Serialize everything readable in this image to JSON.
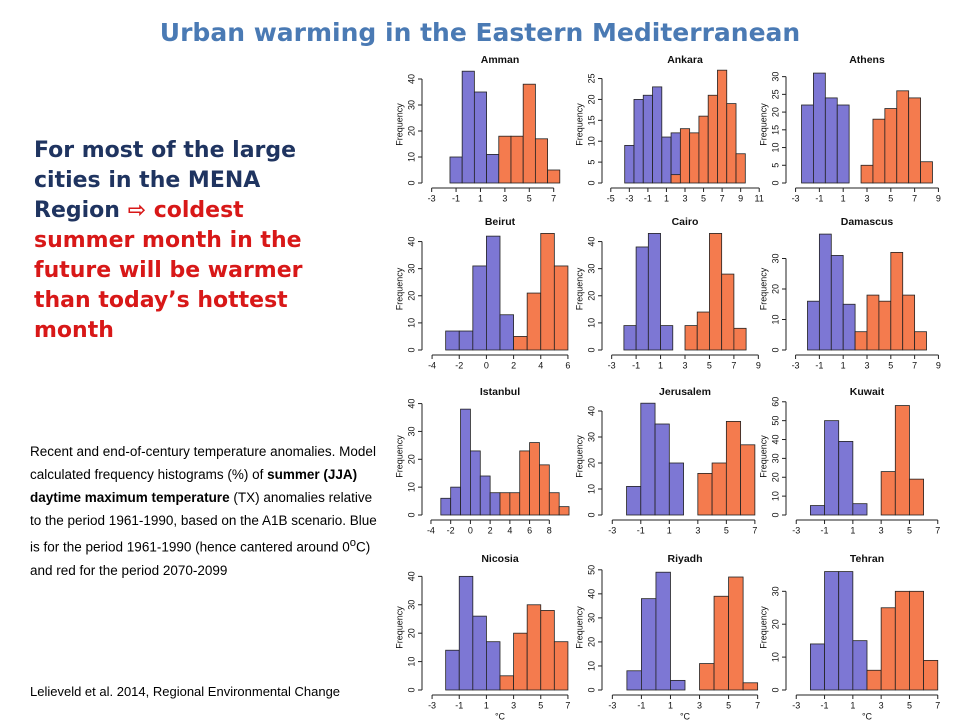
{
  "title": "Urban warming in the Eastern Mediterranean",
  "headline": {
    "lead": "For most of the large cities in the MENA Region",
    "arrow": "⇨",
    "emphasis": "coldest summer month in the future will be warmer than today’s hottest month"
  },
  "caption": [
    "Recent and end-of-century temperature anomalies. Model calculated frequency histograms (%) of ",
    "summer (JJA) daytime maximum temperature",
    " (TX) anomalies relative to the period 1961-1990, based on the A1B scenario. Blue is for the period 1961-1990 (hence cantered around 0",
    "o",
    "C) and red for the period 2070-2099"
  ],
  "citation": "Lelieveld et al. 2014, Regional Environmental Change",
  "chart_data": [
    {
      "type": "histogram",
      "title": "Amman",
      "ylabel": "Frequency",
      "xlim": [
        -3.3,
        8.5
      ],
      "xticks": [
        -3,
        -1,
        1,
        3,
        5,
        7
      ],
      "ylim": [
        0,
        45
      ],
      "yticks": [
        0,
        10,
        20,
        30,
        40
      ],
      "series": [
        {
          "color": "#7d77d4",
          "bins": [
            -1.5,
            -0.5,
            0.5,
            1.5,
            2.5
          ],
          "counts": [
            10,
            43,
            35,
            11
          ]
        },
        {
          "color": "#f47b4e",
          "bins": [
            2.5,
            3.5,
            4.5,
            5.5,
            6.5,
            7.5
          ],
          "counts": [
            18,
            18,
            38,
            17,
            5
          ]
        }
      ]
    },
    {
      "type": "histogram",
      "title": "Ankara",
      "ylabel": "Frequency",
      "xlim": [
        -5.3,
        11.3
      ],
      "xticks": [
        -5,
        -3,
        -1,
        1,
        3,
        5,
        7,
        9,
        11
      ],
      "ylim": [
        0,
        28
      ],
      "yticks": [
        0,
        5,
        10,
        15,
        20,
        25
      ],
      "series": [
        {
          "color": "#7d77d4",
          "bins": [
            -3.5,
            -2.5,
            -1.5,
            -0.5,
            0.5,
            1.5,
            2.5
          ],
          "counts": [
            9,
            20,
            21,
            23,
            11,
            12
          ]
        },
        {
          "color": "#f47b4e",
          "bins": [
            1.5,
            2.5,
            3.5,
            4.5,
            5.5,
            6.5,
            7.5,
            8.5,
            9.5
          ],
          "counts": [
            2,
            13,
            12,
            16,
            21,
            27,
            19,
            7
          ]
        }
      ]
    },
    {
      "type": "histogram",
      "title": "Athens",
      "ylabel": "Frequency",
      "xlim": [
        -3.3,
        9.3
      ],
      "xticks": [
        -3,
        -1,
        1,
        3,
        5,
        7,
        9
      ],
      "ylim": [
        0,
        33
      ],
      "yticks": [
        0,
        5,
        10,
        15,
        20,
        25,
        30
      ],
      "series": [
        {
          "color": "#7d77d4",
          "bins": [
            -2.5,
            -1.5,
            -0.5,
            0.5,
            1.5
          ],
          "counts": [
            22,
            31,
            24,
            22
          ]
        },
        {
          "color": "#f47b4e",
          "bins": [
            2.5,
            3.5,
            4.5,
            5.5,
            6.5,
            7.5,
            8.5
          ],
          "counts": [
            5,
            18,
            21,
            26,
            24,
            6
          ]
        }
      ]
    },
    {
      "type": "histogram",
      "title": "Beirut",
      "ylabel": "Frequency",
      "xlim": [
        -4.3,
        6.3
      ],
      "xticks": [
        -4,
        -2,
        0,
        2,
        4,
        6
      ],
      "ylim": [
        0,
        45
      ],
      "yticks": [
        0,
        10,
        20,
        30,
        40
      ],
      "series": [
        {
          "color": "#7d77d4",
          "bins": [
            -3,
            -2,
            -1,
            0,
            1,
            2
          ],
          "counts": [
            7,
            7,
            31,
            42,
            13
          ]
        },
        {
          "color": "#f47b4e",
          "bins": [
            2,
            3,
            4,
            5,
            6
          ],
          "counts": [
            5,
            21,
            43,
            31
          ]
        }
      ]
    },
    {
      "type": "histogram",
      "title": "Cairo",
      "ylabel": "Frequency",
      "xlim": [
        -3.3,
        9.3
      ],
      "xticks": [
        -3,
        -1,
        1,
        3,
        5,
        7,
        9
      ],
      "ylim": [
        0,
        45
      ],
      "yticks": [
        0,
        10,
        20,
        30,
        40
      ],
      "series": [
        {
          "color": "#7d77d4",
          "bins": [
            -2,
            -1,
            0,
            1,
            2
          ],
          "counts": [
            9,
            38,
            43,
            9
          ]
        },
        {
          "color": "#f47b4e",
          "bins": [
            3,
            4,
            5,
            6,
            7,
            8
          ],
          "counts": [
            9,
            14,
            43,
            28,
            8
          ]
        }
      ]
    },
    {
      "type": "histogram",
      "title": "Damascus",
      "ylabel": "Frequency",
      "xlim": [
        -3.3,
        9.3
      ],
      "xticks": [
        -3,
        -1,
        1,
        3,
        5,
        7,
        9
      ],
      "ylim": [
        0,
        40
      ],
      "yticks": [
        0,
        10,
        20,
        30
      ],
      "series": [
        {
          "color": "#7d77d4",
          "bins": [
            -2,
            -1,
            0,
            1,
            2
          ],
          "counts": [
            16,
            38,
            31,
            15
          ]
        },
        {
          "color": "#f47b4e",
          "bins": [
            2,
            3,
            4,
            5,
            6,
            7,
            8
          ],
          "counts": [
            6,
            18,
            16,
            32,
            18,
            6
          ]
        }
      ]
    },
    {
      "type": "histogram",
      "title": "Istanbul",
      "ylabel": "Frequency",
      "xlim": [
        -4.3,
        10.3
      ],
      "xticks": [
        -4,
        -2,
        0,
        2,
        4,
        6,
        8
      ],
      "ylim": [
        0,
        42
      ],
      "yticks": [
        0,
        10,
        20,
        30,
        40
      ],
      "series": [
        {
          "color": "#7d77d4",
          "bins": [
            -3,
            -2,
            -1,
            0,
            1,
            2,
            3
          ],
          "counts": [
            6,
            10,
            38,
            23,
            14,
            8
          ]
        },
        {
          "color": "#f47b4e",
          "bins": [
            3,
            4,
            5,
            6,
            7,
            8,
            9,
            10
          ],
          "counts": [
            8,
            8,
            23,
            26,
            18,
            8,
            3
          ]
        }
      ]
    },
    {
      "type": "histogram",
      "title": "Jerusalem",
      "ylabel": "Frequency",
      "xlim": [
        -3.3,
        7.5
      ],
      "xticks": [
        -3,
        -1,
        1,
        3,
        5,
        7
      ],
      "ylim": [
        0,
        45
      ],
      "yticks": [
        0,
        10,
        20,
        30,
        40
      ],
      "series": [
        {
          "color": "#7d77d4",
          "bins": [
            -2,
            -1,
            0,
            1,
            2
          ],
          "counts": [
            11,
            43,
            35,
            20
          ]
        },
        {
          "color": "#f47b4e",
          "bins": [
            3,
            4,
            5,
            6,
            7
          ],
          "counts": [
            16,
            20,
            36,
            27
          ]
        }
      ]
    },
    {
      "type": "histogram",
      "title": "Kuwait",
      "ylabel": "Frequency",
      "xlim": [
        -3.3,
        7.3
      ],
      "xticks": [
        -3,
        -1,
        1,
        3,
        5,
        7
      ],
      "ylim": [
        0,
        62
      ],
      "yticks": [
        0,
        10,
        20,
        30,
        40,
        50,
        60
      ],
      "series": [
        {
          "color": "#7d77d4",
          "bins": [
            -2,
            -1,
            0,
            1,
            2
          ],
          "counts": [
            5,
            50,
            39,
            6
          ]
        },
        {
          "color": "#f47b4e",
          "bins": [
            3,
            4,
            5,
            6
          ],
          "counts": [
            23,
            58,
            19
          ]
        }
      ]
    },
    {
      "type": "histogram",
      "title": "Nicosia",
      "ylabel": "Frequency",
      "xlabel": "°C",
      "xlim": [
        -3.3,
        7.3
      ],
      "xticks": [
        -3,
        -1,
        1,
        3,
        5,
        7
      ],
      "ylim": [
        0,
        44
      ],
      "yticks": [
        0,
        10,
        20,
        30,
        40
      ],
      "series": [
        {
          "color": "#7d77d4",
          "bins": [
            -2,
            -1,
            0,
            1,
            2
          ],
          "counts": [
            14,
            40,
            26,
            17
          ]
        },
        {
          "color": "#f47b4e",
          "bins": [
            2,
            3,
            4,
            5,
            6,
            7
          ],
          "counts": [
            5,
            20,
            30,
            28,
            17
          ]
        }
      ]
    },
    {
      "type": "histogram",
      "title": "Riyadh",
      "ylabel": "Frequency",
      "xlabel": "°C",
      "xlim": [
        -3.3,
        7.3
      ],
      "xticks": [
        -3,
        -1,
        1,
        3,
        5,
        7
      ],
      "ylim": [
        0,
        52
      ],
      "yticks": [
        0,
        10,
        20,
        30,
        40,
        50
      ],
      "series": [
        {
          "color": "#7d77d4",
          "bins": [
            -2,
            -1,
            0,
            1,
            2
          ],
          "counts": [
            8,
            38,
            49,
            4
          ]
        },
        {
          "color": "#f47b4e",
          "bins": [
            3,
            4,
            5,
            6,
            7
          ],
          "counts": [
            11,
            39,
            47,
            3
          ]
        }
      ]
    },
    {
      "type": "histogram",
      "title": "Tehran",
      "ylabel": "Frequency",
      "xlabel": "°C",
      "xlim": [
        -3.3,
        7.3
      ],
      "xticks": [
        -3,
        -1,
        1,
        3,
        5,
        7
      ],
      "ylim": [
        0,
        38
      ],
      "yticks": [
        0,
        10,
        20,
        30
      ],
      "series": [
        {
          "color": "#7d77d4",
          "bins": [
            -2,
            -1,
            0,
            1,
            2
          ],
          "counts": [
            14,
            36,
            36,
            15
          ]
        },
        {
          "color": "#f47b4e",
          "bins": [
            2,
            3,
            4,
            5,
            6,
            7
          ],
          "counts": [
            6,
            25,
            30,
            30,
            9
          ]
        }
      ]
    }
  ]
}
